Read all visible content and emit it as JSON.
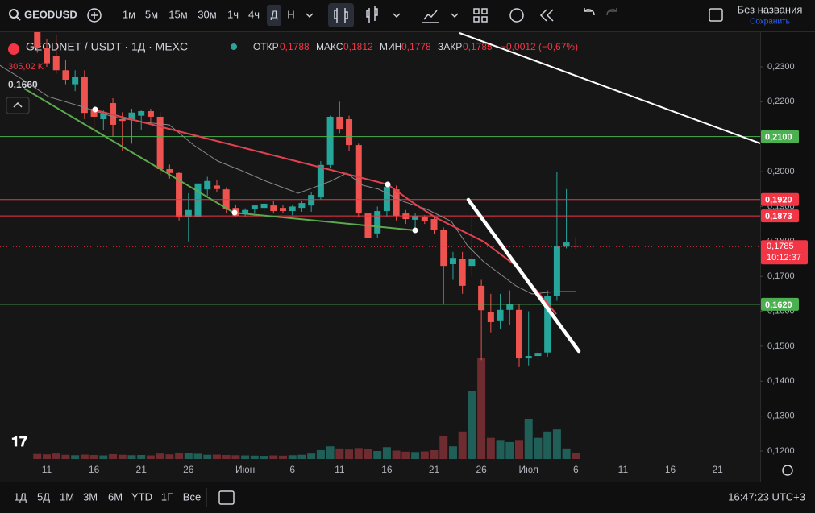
{
  "toolbar": {
    "symbol": "GEODUSD",
    "intervals": [
      "1м",
      "5м",
      "15м",
      "30м",
      "1ч",
      "4ч",
      "Д",
      "Н"
    ],
    "active_interval": 6,
    "layout_name": "Без названия",
    "save": "Сохранить"
  },
  "legend": {
    "title": "GEODNET / USDT · 1Д · MEXC",
    "open_label": "ОТКР",
    "open": "0,1788",
    "high_label": "МАКС",
    "high": "0,1812",
    "low_label": "МИН",
    "low": "0,1778",
    "close_label": "ЗАКР",
    "close": "0,1785",
    "change": "−0,0012 (−0,67%)",
    "volume": "305,02 K",
    "indicator": "0,1660"
  },
  "chart_data": {
    "type": "candlestick",
    "categories": [
      null,
      "11",
      null,
      null,
      null,
      null,
      "16",
      null,
      null,
      null,
      null,
      "21",
      null,
      null,
      null,
      null,
      "26",
      null,
      null,
      null,
      null,
      null,
      "Июн",
      null,
      null,
      null,
      null,
      "6",
      null,
      null,
      null,
      null,
      "11",
      null,
      null,
      null,
      null,
      "16",
      null,
      null,
      null,
      null,
      "21",
      null,
      null,
      null,
      null,
      "26",
      null,
      null,
      null,
      null,
      "Июл",
      null,
      null,
      null,
      null,
      "6"
    ],
    "future_categories": [
      "11",
      "16",
      "21"
    ],
    "open": [
      0.24,
      0.2353,
      0.233,
      0.229,
      0.225,
      0.2272,
      0.218,
      0.215,
      0.2196,
      0.215,
      0.215,
      0.216,
      0.2173,
      0.2157,
      0.2007,
      0.1996,
      0.1869,
      0.1869,
      0.1949,
      0.196,
      0.1949,
      0.1896,
      0.188,
      0.1892,
      0.1896,
      0.1903,
      0.1896,
      0.1887,
      0.1896,
      0.1903,
      0.1926,
      0.2019,
      0.2157,
      0.215,
      0.2076,
      0.188,
      0.1823,
      0.1887,
      0.1949,
      0.188,
      0.1862,
      0.1869,
      0.1864,
      0.1834,
      0.1735,
      0.1751,
      0.173,
      0.1673,
      0.1597,
      0.1574,
      0.1604,
      0.1604,
      0.1465,
      0.1472,
      0.1482,
      0.1643,
      0.1785,
      0.1788
    ],
    "high": [
      0.242,
      0.238,
      0.239,
      0.232,
      0.229,
      0.229,
      0.219,
      0.2175,
      0.221,
      0.217,
      0.218,
      0.2175,
      0.218,
      0.217,
      0.202,
      0.2,
      0.1938,
      0.198,
      0.1985,
      0.1975,
      0.1955,
      0.1905,
      0.1895,
      0.1905,
      0.191,
      0.1915,
      0.1905,
      0.1905,
      0.1915,
      0.194,
      0.203,
      0.216,
      0.22,
      0.216,
      0.208,
      0.189,
      0.19,
      0.197,
      0.196,
      0.189,
      0.188,
      0.1875,
      0.187,
      0.184,
      0.177,
      0.177,
      0.188,
      0.169,
      0.165,
      0.165,
      0.166,
      0.162,
      0.16,
      0.149,
      0.166,
      0.2,
      0.195,
      0.1812
    ],
    "low": [
      0.234,
      0.23,
      0.228,
      0.225,
      0.223,
      0.215,
      0.211,
      0.212,
      0.21,
      0.206,
      0.208,
      0.212,
      0.214,
      0.199,
      0.198,
      0.186,
      0.18,
      0.186,
      0.193,
      0.194,
      0.188,
      0.187,
      0.187,
      0.188,
      0.1885,
      0.188,
      0.188,
      0.1875,
      0.1885,
      0.1885,
      0.192,
      0.201,
      0.211,
      0.206,
      0.187,
      0.177,
      0.181,
      0.187,
      0.186,
      0.185,
      0.184,
      0.185,
      0.182,
      0.162,
      0.169,
      0.165,
      0.17,
      0.146,
      0.154,
      0.155,
      0.156,
      0.144,
      0.1445,
      0.146,
      0.147,
      0.163,
      0.178,
      0.1778
    ],
    "close": [
      0.2353,
      0.231,
      0.229,
      0.2263,
      0.2272,
      0.2168,
      0.2157,
      0.2165,
      0.2134,
      0.2145,
      0.2169,
      0.2173,
      0.2157,
      0.2007,
      0.1996,
      0.1869,
      0.189,
      0.1966,
      0.1973,
      0.195,
      0.1892,
      0.1873,
      0.189,
      0.1903,
      0.1908,
      0.1887,
      0.1887,
      0.19,
      0.191,
      0.1933,
      0.2019,
      0.2157,
      0.2122,
      0.2076,
      0.188,
      0.1811,
      0.1887,
      0.1956,
      0.1873,
      0.1864,
      0.1873,
      0.1857,
      0.1834,
      0.173,
      0.1753,
      0.1673,
      0.1749,
      0.1603,
      0.1569,
      0.1604,
      0.162,
      0.1465,
      0.1472,
      0.1481,
      0.1643,
      0.1788,
      0.1797,
      0.1785
    ],
    "volume": [
      240,
      220,
      260,
      200,
      180,
      210,
      190,
      170,
      230,
      200,
      180,
      190,
      170,
      260,
      220,
      300,
      280,
      250,
      200,
      210,
      190,
      180,
      170,
      160,
      150,
      170,
      160,
      180,
      200,
      260,
      420,
      600,
      500,
      450,
      520,
      480,
      380,
      560,
      400,
      350,
      330,
      360,
      420,
      1100,
      600,
      1300,
      3200,
      4750,
      1000,
      900,
      800,
      900,
      1900,
      1000,
      1300,
      1400,
      500,
      305.02
    ],
    "up_color": "#26a69a",
    "down_color": "#ef5350",
    "volume_up_color": "#1f5f58",
    "volume_down_color": "#6e2b30",
    "ylim": [
      0.1177,
      0.2399
    ],
    "yticks": [
      {
        "value": 0.23,
        "label": "0,2300"
      },
      {
        "value": 0.22,
        "label": "0,2200"
      },
      {
        "value": 0.21,
        "label": "0,2100"
      },
      {
        "value": 0.2,
        "label": "0,2000"
      },
      {
        "value": 0.19,
        "label": "0,1900"
      },
      {
        "value": 0.18,
        "label": "0,1800"
      },
      {
        "value": 0.17,
        "label": "0,1700"
      },
      {
        "value": 0.16,
        "label": "0,1600"
      },
      {
        "value": 0.15,
        "label": "0,1500"
      },
      {
        "value": 0.14,
        "label": "0,1400"
      },
      {
        "value": 0.13,
        "label": "0,1300"
      },
      {
        "value": 0.12,
        "label": "0,1200"
      }
    ],
    "price_lines": [
      {
        "value": 0.21,
        "label": "0,2100",
        "color": "#4caf50"
      },
      {
        "value": 0.192,
        "label": "0,1920",
        "color": "#f23645"
      },
      {
        "value": 0.1873,
        "label": "0,1873",
        "color": "#f23645"
      },
      {
        "value": 0.162,
        "label": "0,1620",
        "color": "#4caf50"
      }
    ],
    "current_price": {
      "value": 0.1785,
      "label": "0,1785",
      "timer": "10:12:37",
      "color": "#f23645"
    }
  },
  "bottom": {
    "ranges": [
      "1Д",
      "5Д",
      "1М",
      "3М",
      "6М",
      "YTD",
      "1Г",
      "Все"
    ],
    "clock": "16:47:23 UTC+3"
  }
}
